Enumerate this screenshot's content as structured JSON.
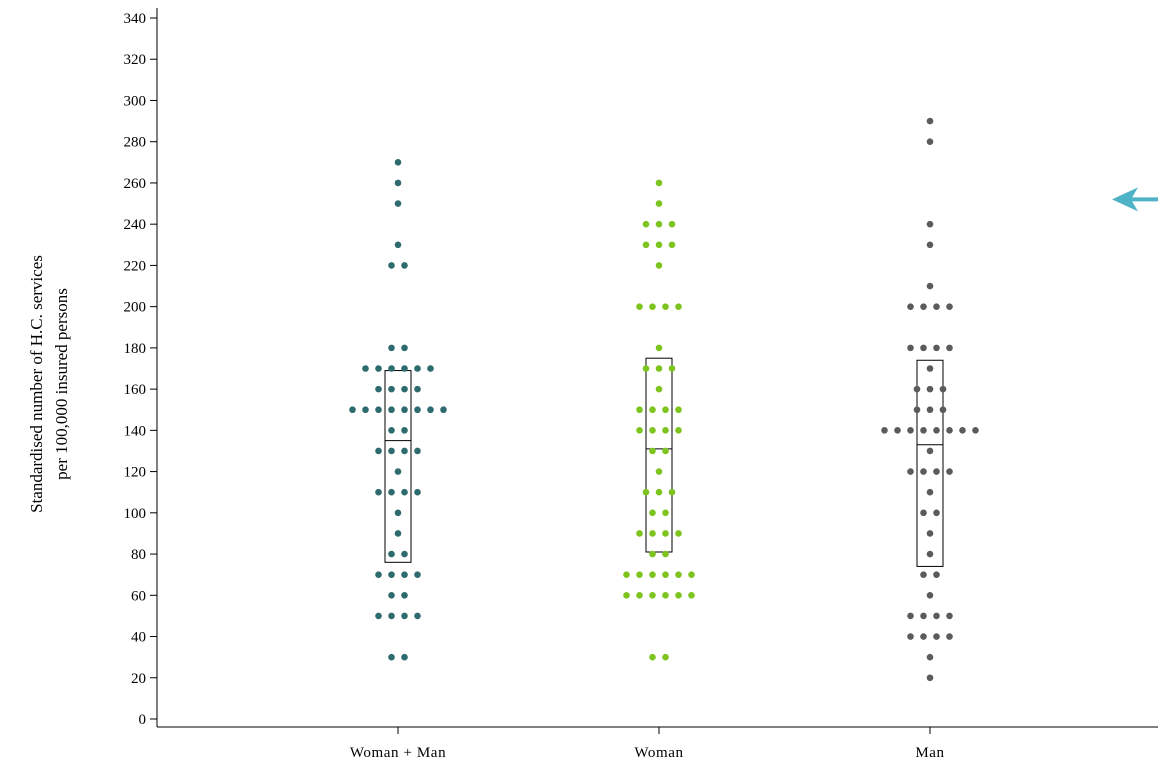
{
  "chart_data": {
    "type": "scatter",
    "subtype": "dot-strip-with-box",
    "ylabel": "Standardised number of H.C. services",
    "ylabel_line2": "per 100,000 insured persons",
    "ylim": [
      0,
      340
    ],
    "yticks": [
      0,
      20,
      40,
      60,
      80,
      100,
      120,
      140,
      160,
      180,
      200,
      220,
      240,
      260,
      280,
      300,
      320,
      340
    ],
    "ytick_labels": [
      "0",
      "20",
      "40",
      "60",
      "80",
      "100",
      "120",
      "140",
      "160",
      "180",
      "200",
      "220",
      "240",
      "260",
      "280",
      "300",
      "320",
      "340"
    ],
    "categories": [
      "Woman + Man",
      "Woman",
      "Man"
    ],
    "grid": false,
    "series": [
      {
        "color": "#2e6b6e",
        "box": {
          "q1": 76,
          "median": 135,
          "q3": 169
        },
        "points": [
          {
            "y": 270,
            "offsets": [
              0
            ]
          },
          {
            "y": 260,
            "offsets": [
              0
            ]
          },
          {
            "y": 250,
            "offsets": [
              0
            ]
          },
          {
            "y": 230,
            "offsets": [
              0
            ]
          },
          {
            "y": 220,
            "offsets": [
              -0.5,
              0.5
            ]
          },
          {
            "y": 180,
            "offsets": [
              -0.5,
              0.5
            ]
          },
          {
            "y": 170,
            "offsets": [
              -2.5,
              -1.5,
              -0.5,
              0.5,
              1.5,
              2.5
            ]
          },
          {
            "y": 160,
            "offsets": [
              -1.5,
              -0.5,
              0.5,
              1.5
            ]
          },
          {
            "y": 150,
            "offsets": [
              -3.5,
              -2.5,
              -1.5,
              -0.5,
              0.5,
              1.5,
              2.5,
              3.5
            ]
          },
          {
            "y": 140,
            "offsets": [
              -0.5,
              0.5
            ]
          },
          {
            "y": 130,
            "offsets": [
              -1.5,
              -0.5,
              0.5,
              1.5
            ]
          },
          {
            "y": 120,
            "offsets": [
              0
            ]
          },
          {
            "y": 110,
            "offsets": [
              -1.5,
              -0.5,
              0.5,
              1.5
            ]
          },
          {
            "y": 100,
            "offsets": [
              0
            ]
          },
          {
            "y": 90,
            "offsets": [
              0
            ]
          },
          {
            "y": 80,
            "offsets": [
              -0.5,
              0.5
            ]
          },
          {
            "y": 70,
            "offsets": [
              -1.5,
              -0.5,
              0.5,
              1.5
            ]
          },
          {
            "y": 60,
            "offsets": [
              -0.5,
              0.5
            ]
          },
          {
            "y": 50,
            "offsets": [
              -1.5,
              -0.5,
              0.5,
              1.5
            ]
          },
          {
            "y": 30,
            "offsets": [
              -0.5,
              0.5
            ]
          }
        ]
      },
      {
        "color": "#7dc41f",
        "box": {
          "q1": 81,
          "median": 131,
          "q3": 175
        },
        "points": [
          {
            "y": 260,
            "offsets": [
              0
            ]
          },
          {
            "y": 250,
            "offsets": [
              0
            ]
          },
          {
            "y": 240,
            "offsets": [
              -1,
              0,
              1
            ]
          },
          {
            "y": 230,
            "offsets": [
              -1,
              0,
              1
            ]
          },
          {
            "y": 220,
            "offsets": [
              0
            ]
          },
          {
            "y": 200,
            "offsets": [
              -1.5,
              -0.5,
              0.5,
              1.5
            ]
          },
          {
            "y": 180,
            "offsets": [
              0
            ]
          },
          {
            "y": 170,
            "offsets": [
              -1,
              0,
              1
            ]
          },
          {
            "y": 160,
            "offsets": [
              0
            ]
          },
          {
            "y": 150,
            "offsets": [
              -1.5,
              -0.5,
              0.5,
              1.5
            ]
          },
          {
            "y": 140,
            "offsets": [
              -1.5,
              -0.5,
              0.5,
              1.5
            ]
          },
          {
            "y": 130,
            "offsets": [
              -0.5,
              0.5
            ]
          },
          {
            "y": 120,
            "offsets": [
              0
            ]
          },
          {
            "y": 110,
            "offsets": [
              -1,
              0,
              1
            ]
          },
          {
            "y": 100,
            "offsets": [
              -0.5,
              0.5
            ]
          },
          {
            "y": 90,
            "offsets": [
              -1.5,
              -0.5,
              0.5,
              1.5
            ]
          },
          {
            "y": 80,
            "offsets": [
              -0.5,
              0.5
            ]
          },
          {
            "y": 70,
            "offsets": [
              -2.5,
              -1.5,
              -0.5,
              0.5,
              1.5,
              2.5
            ]
          },
          {
            "y": 60,
            "offsets": [
              -2.5,
              -1.5,
              -0.5,
              0.5,
              1.5,
              2.5
            ]
          },
          {
            "y": 30,
            "offsets": [
              -0.5,
              0.5
            ]
          }
        ]
      },
      {
        "color": "#5b5b5b",
        "box": {
          "q1": 74,
          "median": 133,
          "q3": 174
        },
        "points": [
          {
            "y": 290,
            "offsets": [
              0
            ]
          },
          {
            "y": 280,
            "offsets": [
              0
            ]
          },
          {
            "y": 240,
            "offsets": [
              0
            ]
          },
          {
            "y": 230,
            "offsets": [
              0
            ]
          },
          {
            "y": 210,
            "offsets": [
              0
            ]
          },
          {
            "y": 200,
            "offsets": [
              -1.5,
              -0.5,
              0.5,
              1.5
            ]
          },
          {
            "y": 180,
            "offsets": [
              -1.5,
              -0.5,
              0.5,
              1.5
            ]
          },
          {
            "y": 170,
            "offsets": [
              0
            ]
          },
          {
            "y": 160,
            "offsets": [
              -1,
              0,
              1
            ]
          },
          {
            "y": 150,
            "offsets": [
              -1,
              0,
              1
            ]
          },
          {
            "y": 140,
            "offsets": [
              -3.5,
              -2.5,
              -1.5,
              -0.5,
              0.5,
              1.5,
              2.5,
              3.5
            ]
          },
          {
            "y": 130,
            "offsets": [
              0
            ]
          },
          {
            "y": 120,
            "offsets": [
              -1.5,
              -0.5,
              0.5,
              1.5
            ]
          },
          {
            "y": 110,
            "offsets": [
              0
            ]
          },
          {
            "y": 100,
            "offsets": [
              -0.5,
              0.5
            ]
          },
          {
            "y": 90,
            "offsets": [
              0
            ]
          },
          {
            "y": 80,
            "offsets": [
              0
            ]
          },
          {
            "y": 70,
            "offsets": [
              -0.5,
              0.5
            ]
          },
          {
            "y": 60,
            "offsets": [
              0
            ]
          },
          {
            "y": 50,
            "offsets": [
              -1.5,
              -0.5,
              0.5,
              1.5
            ]
          },
          {
            "y": 40,
            "offsets": [
              -1.5,
              -0.5,
              0.5,
              1.5
            ]
          },
          {
            "y": 30,
            "offsets": [
              0
            ]
          },
          {
            "y": 20,
            "offsets": [
              0
            ]
          }
        ]
      }
    ],
    "annotation": {
      "type": "arrow",
      "direction": "left",
      "y": 252,
      "color": "#4fb3c8"
    }
  }
}
